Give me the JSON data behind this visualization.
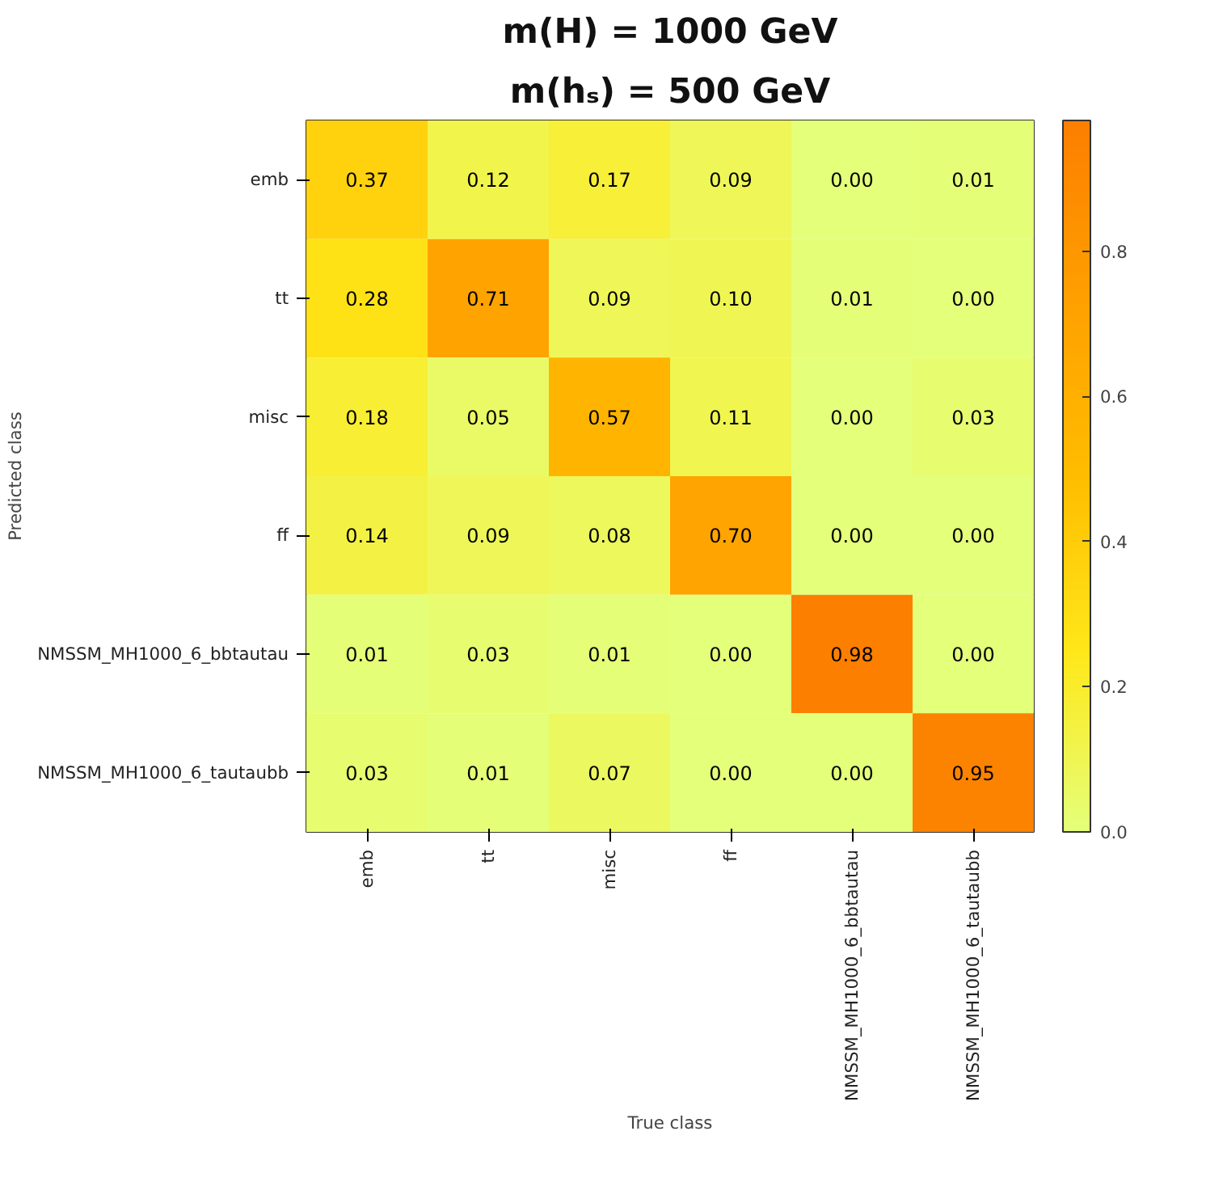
{
  "chart_data": {
    "type": "heatmap",
    "title": "m(H) = 1000 GeV",
    "subtitle": "m(hₛ) = 500 GeV",
    "xlabel": "True class",
    "ylabel": "Predicted class",
    "categories": [
      "emb",
      "tt",
      "misc",
      "ff",
      "NMSSM_MH1000_6_bbtautau",
      "NMSSM_MH1000_6_tautaubb"
    ],
    "y_categories": [
      "emb",
      "tt",
      "misc",
      "ff",
      "NMSSM_MH1000_6_bbtautau",
      "NMSSM_MH1000_6_tautaubb"
    ],
    "cells": [
      [
        0.37,
        0.12,
        0.17,
        0.09,
        0.0,
        0.01
      ],
      [
        0.28,
        0.71,
        0.09,
        0.1,
        0.01,
        0.0
      ],
      [
        0.18,
        0.05,
        0.57,
        0.11,
        0.0,
        0.03
      ],
      [
        0.14,
        0.09,
        0.08,
        0.7,
        0.0,
        0.0
      ],
      [
        0.01,
        0.03,
        0.01,
        0.0,
        0.98,
        0.0
      ],
      [
        0.03,
        0.01,
        0.07,
        0.0,
        0.0,
        0.95
      ]
    ],
    "cell_labels": [
      [
        "0.37",
        "0.12",
        "0.17",
        "0.09",
        "0.00",
        "0.01"
      ],
      [
        "0.28",
        "0.71",
        "0.09",
        "0.10",
        "0.01",
        "0.00"
      ],
      [
        "0.18",
        "0.05",
        "0.57",
        "0.11",
        "0.00",
        "0.03"
      ],
      [
        "0.14",
        "0.09",
        "0.08",
        "0.70",
        "0.00",
        "0.00"
      ],
      [
        "0.01",
        "0.03",
        "0.01",
        "0.00",
        "0.98",
        "0.00"
      ],
      [
        "0.03",
        "0.01",
        "0.07",
        "0.00",
        "0.00",
        "0.95"
      ]
    ],
    "clim": [
      0,
      0.98
    ],
    "cticks": [
      {
        "value": 0,
        "label": "0.0"
      },
      0.2,
      0.4,
      0.6,
      0.8
    ],
    "data_labels": true
  }
}
